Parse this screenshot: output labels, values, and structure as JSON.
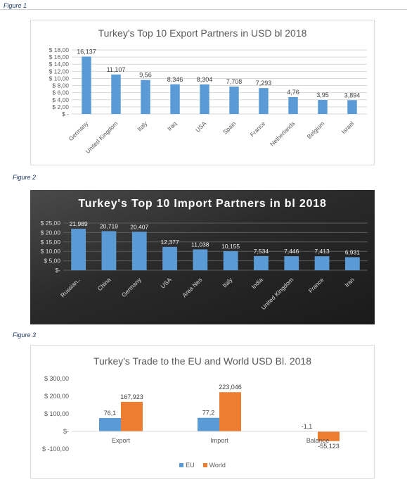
{
  "figures": [
    {
      "label": "Figure 1"
    },
    {
      "label": "Figure 2"
    },
    {
      "label": "Figure 3"
    }
  ],
  "colors": {
    "blue": "#5b9bd5",
    "orange": "#ed7d31",
    "grid_light": "#d9d9d9",
    "text": "#595959"
  },
  "chart_data": [
    {
      "type": "bar",
      "title": "Turkey's Top 10 Export Partners in USD bl 2018",
      "categories": [
        "Germany",
        "United Kingdom",
        "Italy",
        "Iraq",
        "USA",
        "Spain",
        "France",
        "Netherlands",
        "Belgium",
        "Israel"
      ],
      "values": [
        16.137,
        11.107,
        9.56,
        8.346,
        8.304,
        7.708,
        7.293,
        4.76,
        3.95,
        3.894
      ],
      "data_labels": [
        "16,137",
        "11,107",
        "9,56",
        "8,346",
        "8,304",
        "7,708",
        "7,293",
        "4,76",
        "3,95",
        "3,894"
      ],
      "y_ticks": [
        0,
        2,
        4,
        6,
        8,
        10,
        12,
        14,
        16,
        18
      ],
      "y_tick_labels": [
        "$ -",
        "$ 2,00",
        "$ 4,00",
        "$ 6,00",
        "$ 8,00",
        "$ 10,00",
        "$ 12,00",
        "$ 14,00",
        "$ 16,00",
        "$ 18,00"
      ],
      "ylim": [
        0,
        18
      ],
      "xlabel": "",
      "ylabel": "",
      "grid": true
    },
    {
      "type": "bar",
      "title": "Turkey's Top 10 Import Partners in bl 2018",
      "categories": [
        "Russian..",
        "China",
        "Germany",
        "USA",
        "Area Nes",
        "Italy",
        "India",
        "United Kingdom",
        "France",
        "Iran"
      ],
      "values": [
        21.989,
        20.719,
        20.407,
        12.377,
        11.038,
        10.155,
        7.534,
        7.446,
        7.413,
        6.931
      ],
      "data_labels": [
        "21,989",
        "20,719",
        "20,407",
        "12,377",
        "11,038",
        "10,155",
        "7,534",
        "7,446",
        "7,413",
        "6,931"
      ],
      "y_ticks": [
        0,
        5,
        10,
        15,
        20,
        25
      ],
      "y_tick_labels": [
        "$-",
        "$ 5,00",
        "$ 10,00",
        "$ 15,00",
        "$ 20,00",
        "$ 25,00"
      ],
      "ylim": [
        0,
        25
      ],
      "xlabel": "",
      "ylabel": "",
      "grid": true
    },
    {
      "type": "bar",
      "title": "Turkey's Trade to the EU and World USD Bl. 2018",
      "categories": [
        "Export",
        "Import",
        "Balance"
      ],
      "series": [
        {
          "name": "EU",
          "values": [
            76.1,
            77.2,
            -1.1
          ],
          "data_labels": [
            "76,1",
            "77,2",
            "-1,1"
          ]
        },
        {
          "name": "World",
          "values": [
            167.923,
            223.046,
            -55.123
          ],
          "data_labels": [
            "167,923",
            "223,046",
            "-55,123"
          ]
        }
      ],
      "y_ticks": [
        -100,
        0,
        100,
        200,
        300
      ],
      "y_tick_labels": [
        "$ -100,00",
        "$-",
        "$ 100,00",
        "$ 200,00",
        "$ 300,00"
      ],
      "ylim": [
        -100,
        300
      ],
      "xlabel": "",
      "ylabel": "",
      "grid": false,
      "legend": "bottom"
    }
  ]
}
